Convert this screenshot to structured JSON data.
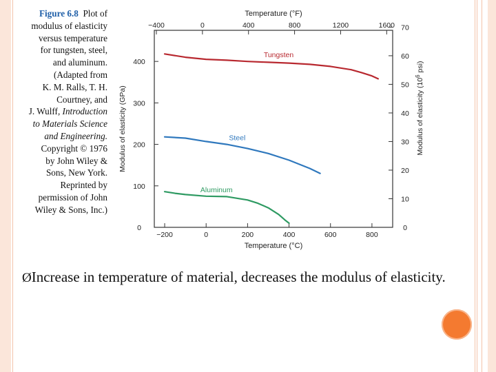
{
  "caption": {
    "fig_label": "Figure 6.8",
    "line1_rest": "Plot of",
    "lines": [
      "modulus of elasticity",
      "versus temperature",
      "for tungsten, steel,",
      "and aluminum.",
      "(Adapted from",
      "K. M. Ralls, T. H.",
      "Courtney, and"
    ],
    "wulff": "J. Wulff,",
    "title_italic_1": "Introduction",
    "title_italic_2": "to Materials Science",
    "title_italic_3": "and Engineering.",
    "lines_after": [
      "Copyright © 1976",
      "by John Wiley &",
      "Sons, New York.",
      "Reprinted by",
      "permission of John",
      "Wiley & Sons, Inc.)"
    ]
  },
  "bullet": {
    "mark": "Ø",
    "text": "Increase in temperature of material, decreases the modulus of elasticity."
  },
  "colors": {
    "tungsten": "#b8282f",
    "steel": "#2f78bd",
    "aluminum": "#2e9a62",
    "accent_dot": "#f47a30"
  },
  "chart_data": {
    "type": "line",
    "xlabel": "Temperature (°C)",
    "x2label": "Temperature (°F)",
    "ylabel": "Modulus of elasticity (GPa)",
    "y2label": "Modulus of elasticity (10",
    "y2label_sup": "6",
    "y2label_tail": " psi)",
    "xlim": [
      -250,
      900
    ],
    "ylim": [
      0,
      475
    ],
    "x_ticks": [
      -200,
      0,
      200,
      400,
      600,
      800
    ],
    "x_tick_labels": [
      "−200",
      "0",
      "200",
      "400",
      "600",
      "800"
    ],
    "y_ticks": [
      0,
      100,
      200,
      300,
      400
    ],
    "y_tick_labels": [
      "0",
      "100",
      "200",
      "300",
      "400"
    ],
    "x2_ticks_f": [
      -400,
      0,
      400,
      800,
      1200,
      1600
    ],
    "x2_tick_labels": [
      "−400",
      "0",
      "400",
      "800",
      "1200",
      "1600"
    ],
    "y2_ticks_psi": [
      0,
      10,
      20,
      30,
      40,
      50,
      60,
      70
    ],
    "y2_tick_labels": [
      "0",
      "10",
      "20",
      "30",
      "40",
      "50",
      "60",
      "70"
    ],
    "series": [
      {
        "name": "Tungsten",
        "color_key": "tungsten",
        "x": [
          -200,
          -100,
          0,
          100,
          200,
          300,
          400,
          500,
          600,
          700,
          750,
          800,
          830
        ],
        "y": [
          418,
          410,
          405,
          403,
          400,
          398,
          396,
          393,
          388,
          380,
          373,
          365,
          358
        ]
      },
      {
        "name": "Steel",
        "color_key": "steel",
        "x": [
          -200,
          -100,
          0,
          100,
          200,
          300,
          400,
          450,
          500,
          550
        ],
        "y": [
          218,
          215,
          207,
          200,
          190,
          178,
          162,
          152,
          142,
          130
        ]
      },
      {
        "name": "Aluminum",
        "color_key": "aluminum",
        "x": [
          -200,
          -150,
          -100,
          0,
          100,
          200,
          250,
          300,
          350,
          380,
          400
        ],
        "y": [
          86,
          82,
          79,
          75,
          74,
          66,
          58,
          47,
          31,
          18,
          10
        ]
      }
    ],
    "series_labels": [
      {
        "text": "Tungsten",
        "x": 350,
        "y": 410,
        "color_key": "tungsten"
      },
      {
        "text": "Steel",
        "x": 150,
        "y": 210,
        "color_key": "steel"
      },
      {
        "text": "Aluminum",
        "x": 50,
        "y": 85,
        "color_key": "aluminum"
      }
    ]
  }
}
